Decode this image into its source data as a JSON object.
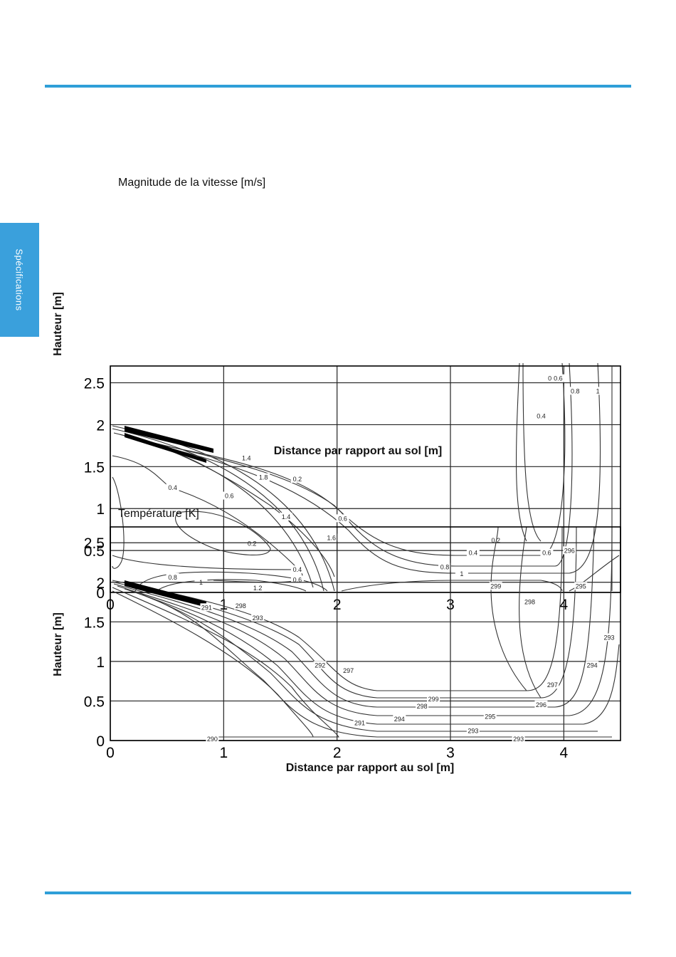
{
  "page": {
    "side_tab": "Spécifications",
    "accent_color": "#2f9fd8",
    "tab_color": "#3aa0dc"
  },
  "chart_data": [
    {
      "type": "contour",
      "title": "Magnitude de la vitesse [m/s]",
      "xlabel": "Distance par rapport au sol [m]",
      "ylabel": "Hauteur [m]",
      "xlim": [
        0,
        4.5
      ],
      "ylim": [
        0,
        2.7
      ],
      "xticks": [
        "0",
        "1",
        "2",
        "3",
        "4"
      ],
      "yticks": [
        "0",
        "0.5",
        "1",
        "1.5",
        "2",
        "2.5"
      ],
      "grid": true,
      "contour_levels": [
        0.2,
        0.4,
        0.6,
        0.8,
        1,
        1.2,
        1.4,
        1.6,
        1.8
      ],
      "contour_labels": [
        {
          "text": "0.2",
          "x": 3.9,
          "y": 2.55
        },
        {
          "text": "0.4",
          "x": 3.8,
          "y": 2.1
        },
        {
          "text": "0.6",
          "x": 3.95,
          "y": 2.55
        },
        {
          "text": "0.8",
          "x": 4.1,
          "y": 2.4
        },
        {
          "text": "1",
          "x": 4.3,
          "y": 2.4
        },
        {
          "text": "0.4",
          "x": 0.55,
          "y": 1.25
        },
        {
          "text": "0.6",
          "x": 1.05,
          "y": 1.15
        },
        {
          "text": "0.2",
          "x": 1.25,
          "y": 0.58
        },
        {
          "text": "0.8",
          "x": 0.55,
          "y": 0.18
        },
        {
          "text": "1",
          "x": 0.8,
          "y": 0.12
        },
        {
          "text": "1.2",
          "x": 1.3,
          "y": 0.05
        },
        {
          "text": "0.4",
          "x": 1.65,
          "y": 0.27
        },
        {
          "text": "0.6",
          "x": 1.65,
          "y": 0.15
        },
        {
          "text": "0.6",
          "x": 2.05,
          "y": 0.88
        },
        {
          "text": "0.2",
          "x": 3.4,
          "y": 0.62
        },
        {
          "text": "0.4",
          "x": 3.2,
          "y": 0.47
        },
        {
          "text": "0.6",
          "x": 3.85,
          "y": 0.47
        },
        {
          "text": "0.8",
          "x": 2.95,
          "y": 0.3
        },
        {
          "text": "1",
          "x": 3.1,
          "y": 0.22
        },
        {
          "text": "1.4",
          "x": 1.2,
          "y": 1.6
        },
        {
          "text": "1.8",
          "x": 1.35,
          "y": 1.37
        },
        {
          "text": "1.4",
          "x": 1.55,
          "y": 0.9
        },
        {
          "text": "1.6",
          "x": 1.95,
          "y": 0.65
        },
        {
          "text": "0.2",
          "x": 1.65,
          "y": 1.35
        }
      ]
    },
    {
      "type": "contour",
      "title": "Température [K]",
      "xlabel": "Distance par rapport au sol [m]",
      "ylabel": "Hauteur [m]",
      "xlim": [
        0,
        4.5
      ],
      "ylim": [
        0,
        2.7
      ],
      "xticks": [
        "0",
        "1",
        "2",
        "3",
        "4"
      ],
      "yticks": [
        "0",
        "0.5",
        "1",
        "1.5",
        "2",
        "2.5"
      ],
      "grid": true,
      "contour_levels": [
        290,
        291,
        292,
        293,
        294,
        295,
        296,
        297,
        298,
        299
      ],
      "contour_labels": [
        {
          "text": "291",
          "x": 0.85,
          "y": 1.68
        },
        {
          "text": "298",
          "x": 1.15,
          "y": 1.7
        },
        {
          "text": "293",
          "x": 1.3,
          "y": 1.55
        },
        {
          "text": "292",
          "x": 1.85,
          "y": 0.95
        },
        {
          "text": "297",
          "x": 2.1,
          "y": 0.88
        },
        {
          "text": "291",
          "x": 2.2,
          "y": 0.22
        },
        {
          "text": "299",
          "x": 2.85,
          "y": 0.52
        },
        {
          "text": "298",
          "x": 2.75,
          "y": 0.43
        },
        {
          "text": "294",
          "x": 2.55,
          "y": 0.27
        },
        {
          "text": "293",
          "x": 3.2,
          "y": 0.12
        },
        {
          "text": "295",
          "x": 3.35,
          "y": 0.3
        },
        {
          "text": "296",
          "x": 3.8,
          "y": 0.45
        },
        {
          "text": "297",
          "x": 3.9,
          "y": 0.7
        },
        {
          "text": "293",
          "x": 3.6,
          "y": 0.02
        },
        {
          "text": "299",
          "x": 3.4,
          "y": 1.95
        },
        {
          "text": "298",
          "x": 3.7,
          "y": 1.75
        },
        {
          "text": "296",
          "x": 4.05,
          "y": 2.4
        },
        {
          "text": "295",
          "x": 4.15,
          "y": 1.95
        },
        {
          "text": "294",
          "x": 4.25,
          "y": 0.95
        },
        {
          "text": "293",
          "x": 4.4,
          "y": 1.3
        },
        {
          "text": "290",
          "x": 0.9,
          "y": 0.02
        }
      ]
    }
  ]
}
